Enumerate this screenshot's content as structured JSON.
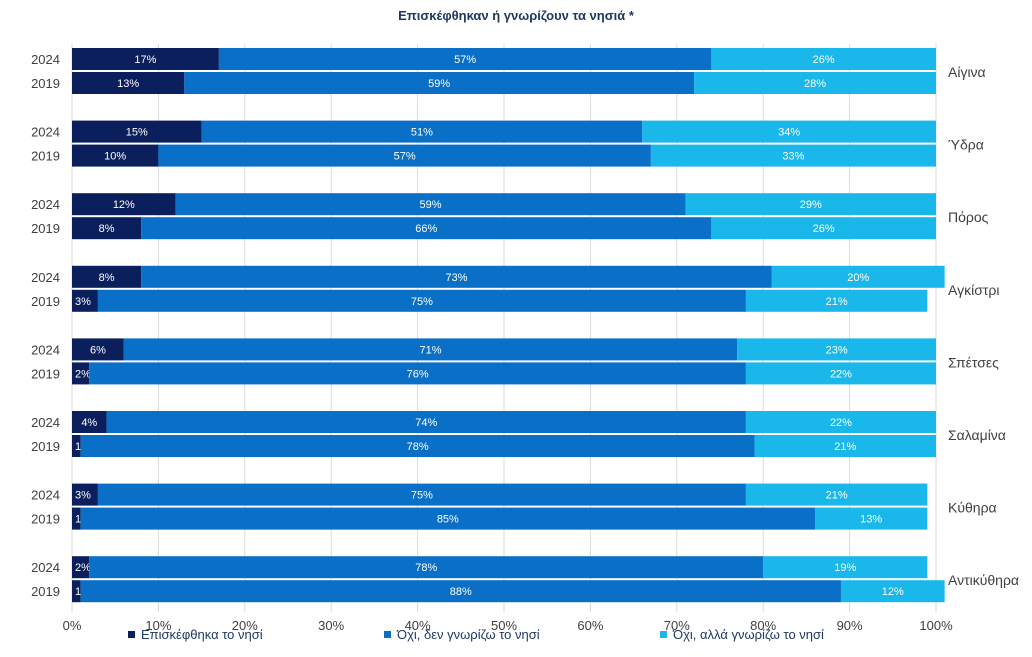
{
  "chart_data": {
    "type": "bar",
    "orientation": "horizontal",
    "stacked": true,
    "title": "Επισκέφθηκαν ή γνωρίζουν τα νησιά *",
    "xlim": [
      0,
      100
    ],
    "x_ticks": [
      "0%",
      "10%",
      "20%",
      "30%",
      "40%",
      "50%",
      "60%",
      "70%",
      "80%",
      "90%",
      "100%"
    ],
    "groups": [
      "Αίγινα",
      "Ύδρα",
      "Πόρος",
      "Αγκίστρι",
      "Σπέτσες",
      "Σαλαμίνα",
      "Κύθηρα",
      "Αντικύθηρα"
    ],
    "years": [
      "2024",
      "2019"
    ],
    "series": [
      {
        "name": "Επισκέφθηκα το νησί",
        "color": "#0b1f5c"
      },
      {
        "name": "Όχι, δεν γνωρίζω το νησί",
        "color": "#0a6fc7"
      },
      {
        "name": "Όχι, αλλά γνωρίζω το νησί",
        "color": "#1ab7ea"
      }
    ],
    "values": {
      "Επισκέφθηκα το νησί": [
        17,
        13,
        15,
        10,
        12,
        8,
        8,
        3,
        6,
        2,
        4,
        1,
        3,
        1,
        2,
        1
      ],
      "Όχι, δεν γνωρίζω το νησί": [
        57,
        59,
        51,
        57,
        59,
        66,
        73,
        75,
        71,
        76,
        74,
        78,
        75,
        85,
        78,
        88
      ],
      "Όχι, αλλά γνωρίζω το νησί": [
        26,
        28,
        34,
        33,
        29,
        26,
        20,
        21,
        23,
        22,
        22,
        21,
        21,
        13,
        19,
        12
      ]
    },
    "labels": {
      "Επισκέφθηκα το νησί": [
        "17%",
        "13%",
        "15%",
        "10%",
        "12%",
        "8%",
        "8%",
        "3%",
        "6%",
        "2%",
        "4%",
        "1%",
        "3%",
        "1%",
        "2%",
        "1%"
      ],
      "Όχι, δεν γνωρίζω το νησί": [
        "57%",
        "59%",
        "51%",
        "57%",
        "59%",
        "66%",
        "73%",
        "75%",
        "71%",
        "76%",
        "74%",
        "78%",
        "75%",
        "85%",
        "78%",
        "88%"
      ],
      "Όχι, αλλά γνωρίζω το νησί": [
        "26%",
        "28%",
        "34%",
        "33%",
        "29%",
        "26%",
        "20%",
        "21%",
        "23%",
        "22%",
        "22%",
        "21%",
        "21%",
        "13%",
        "19%",
        "12%"
      ]
    },
    "grid": true,
    "legend_position": "bottom"
  }
}
